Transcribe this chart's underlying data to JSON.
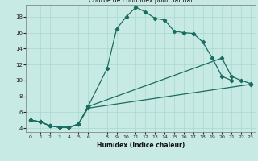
{
  "title": "Courbe de l'humidex pour Saltdal",
  "xlabel": "Humidex (Indice chaleur)",
  "bg_color": "#c8eae4",
  "line_color": "#1a6b60",
  "grid_color": "#a8d8d0",
  "series1_x": [
    0,
    1,
    2,
    3,
    4,
    5,
    6,
    8,
    9,
    10,
    11,
    12,
    13,
    14,
    15,
    16,
    17,
    18,
    19,
    20,
    21,
    22,
    23
  ],
  "series1_y": [
    5.0,
    4.8,
    4.3,
    4.1,
    4.1,
    4.5,
    6.7,
    11.5,
    16.5,
    18.0,
    19.2,
    18.6,
    17.8,
    17.6,
    16.2,
    16.0,
    15.9,
    14.8,
    12.8,
    10.5,
    10.0,
    null,
    null
  ],
  "series2_x": [
    0,
    1,
    2,
    3,
    4,
    5,
    6,
    20,
    21,
    22,
    23
  ],
  "series2_y": [
    5.0,
    4.8,
    4.3,
    4.1,
    4.1,
    4.5,
    6.7,
    12.8,
    10.5,
    10.0,
    9.6
  ],
  "series3_x": [
    0,
    1,
    2,
    3,
    4,
    5,
    6,
    23
  ],
  "series3_y": [
    5.0,
    4.8,
    4.3,
    4.1,
    4.1,
    4.5,
    6.5,
    9.5
  ],
  "xlim": [
    -0.5,
    23.5
  ],
  "ylim": [
    3.5,
    19.5
  ],
  "xticks": [
    0,
    1,
    2,
    3,
    4,
    5,
    6,
    8,
    9,
    10,
    11,
    12,
    13,
    14,
    15,
    16,
    17,
    18,
    19,
    20,
    21,
    22,
    23
  ],
  "yticks": [
    4,
    6,
    8,
    10,
    12,
    14,
    16,
    18
  ]
}
